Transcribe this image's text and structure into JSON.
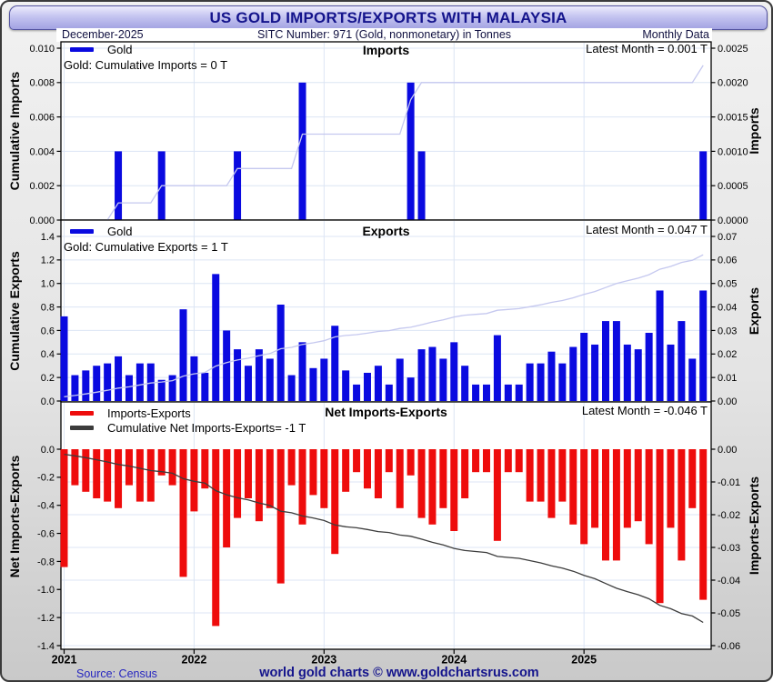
{
  "header": {
    "title": "US GOLD IMPORTS/EXPORTS WITH MALAYSIA"
  },
  "info_bar": {
    "date": "December-2025",
    "sitc": "SITC Number: 971 (Gold, nonmonetary) in Tonnes",
    "frequency": "Monthly Data"
  },
  "footer": {
    "source": "Source: Census",
    "branding": "world gold charts © www.goldchartsrus.com"
  },
  "colors": {
    "accent_navy": "#14148c",
    "bar_blue": "#0a0ae0",
    "bar_red": "#ee0c0c",
    "cumulative_light": "#c5c8ef",
    "cumulative_dark": "#3c3c3c",
    "gridline": "#dce5f4",
    "frame": "#000000",
    "source_blue": "#2525c0"
  },
  "years": [
    "2021",
    "2022",
    "2023",
    "2024",
    "2025"
  ],
  "chart_data": [
    {
      "type": "bar",
      "id": "imports",
      "title": "Imports",
      "legend": [
        {
          "label": "Gold",
          "color": "#0a0ae0"
        }
      ],
      "annotation": "Gold: Cumulative Imports = 0 T",
      "latest": "Latest Month = 0.001 T",
      "left_axis": {
        "label": "Cumulative Imports",
        "min": 0,
        "max": 0.01,
        "step": 0.002,
        "decimals": 3
      },
      "right_axis": {
        "label": "Imports",
        "min": 0,
        "max": 0.0025,
        "step": 0.0005,
        "decimals": 4
      },
      "x_start_year": 2021,
      "monthly_values": [
        0,
        0,
        0,
        0,
        0,
        0.001,
        0,
        0,
        0,
        0.001,
        0,
        0,
        0,
        0,
        0,
        0,
        0.001,
        0,
        0,
        0,
        0,
        0,
        0.002,
        0,
        0,
        0,
        0,
        0,
        0,
        0,
        0,
        0,
        0.002,
        0.001,
        0,
        0,
        0,
        0,
        0,
        0,
        0,
        0,
        0,
        0,
        0,
        0,
        0,
        0,
        0,
        0,
        0,
        0,
        0,
        0,
        0,
        0,
        0,
        0,
        0,
        0.001
      ],
      "cumulative_final_t": 0.009
    },
    {
      "type": "bar",
      "id": "exports",
      "title": "Exports",
      "legend": [
        {
          "label": "Gold",
          "color": "#0a0ae0"
        }
      ],
      "annotation": "Gold: Cumulative Exports = 1 T",
      "latest": "Latest Month = 0.047 T",
      "left_axis": {
        "label": "Cumulative Exports",
        "min": 0,
        "max": 1.4,
        "step": 0.2,
        "decimals": 1
      },
      "right_axis": {
        "label": "Exports",
        "min": 0,
        "max": 0.07,
        "step": 0.01,
        "decimals": 2
      },
      "x_start_year": 2021,
      "monthly_values": [
        0.036,
        0.011,
        0.013,
        0.015,
        0.016,
        0.019,
        0.011,
        0.016,
        0.016,
        0.009,
        0.011,
        0.039,
        0.019,
        0.012,
        0.054,
        0.03,
        0.022,
        0.015,
        0.022,
        0.018,
        0.041,
        0.011,
        0.025,
        0.014,
        0.018,
        0.032,
        0.013,
        0.007,
        0.012,
        0.015,
        0.007,
        0.018,
        0.01,
        0.022,
        0.023,
        0.018,
        0.025,
        0.015,
        0.007,
        0.007,
        0.028,
        0.007,
        0.007,
        0.016,
        0.016,
        0.021,
        0.016,
        0.023,
        0.029,
        0.024,
        0.034,
        0.034,
        0.024,
        0.022,
        0.029,
        0.047,
        0.024,
        0.034,
        0.018,
        0.047
      ],
      "cumulative_final_t": 1.244
    },
    {
      "type": "bar",
      "id": "net",
      "title": "Net Imports-Exports",
      "legend": [
        {
          "label": "Imports-Exports",
          "color": "#ee0c0c"
        },
        {
          "label": "Cumulative Net Imports-Exports= -1 T",
          "color": "#3c3c3c"
        }
      ],
      "annotation": "",
      "latest": "Latest Month = -0.046 T",
      "left_axis": {
        "label": "Net Imports-Exports",
        "min": -1.4,
        "max": 0,
        "step": 0.2,
        "decimals": 1
      },
      "right_axis": {
        "label": "Imports-Exports",
        "min": -0.06,
        "max": 0,
        "step": 0.01,
        "decimals": 2
      },
      "x_start_year": 2021,
      "monthly_values": [
        -0.036,
        -0.011,
        -0.013,
        -0.015,
        -0.016,
        -0.018,
        -0.011,
        -0.016,
        -0.016,
        -0.008,
        -0.011,
        -0.039,
        -0.019,
        -0.012,
        -0.054,
        -0.03,
        -0.021,
        -0.015,
        -0.022,
        -0.018,
        -0.041,
        -0.011,
        -0.023,
        -0.014,
        -0.018,
        -0.032,
        -0.013,
        -0.007,
        -0.012,
        -0.015,
        -0.007,
        -0.018,
        -0.008,
        -0.021,
        -0.023,
        -0.018,
        -0.025,
        -0.015,
        -0.007,
        -0.007,
        -0.028,
        -0.007,
        -0.007,
        -0.016,
        -0.016,
        -0.021,
        -0.016,
        -0.023,
        -0.029,
        -0.024,
        -0.034,
        -0.034,
        -0.024,
        -0.022,
        -0.029,
        -0.047,
        -0.024,
        -0.034,
        -0.018,
        -0.046
      ],
      "cumulative_final_t": -1.235
    }
  ]
}
